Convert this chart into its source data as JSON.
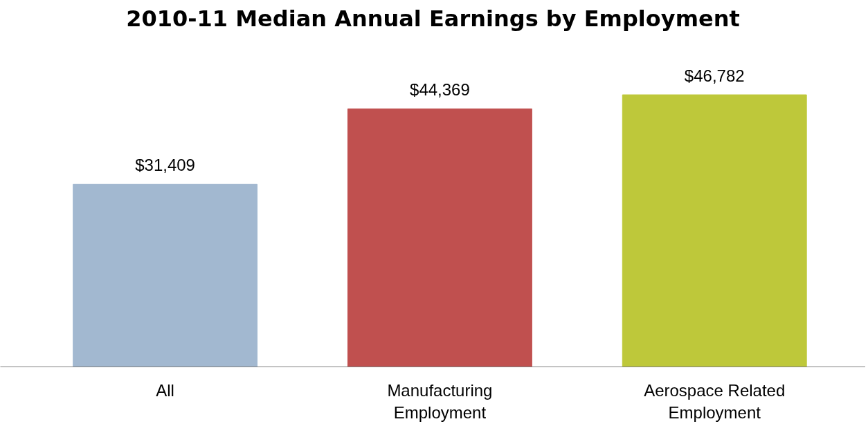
{
  "chart_data": {
    "type": "bar",
    "title": "2010-11 Median Annual Earnings by Employment",
    "categories": [
      "All",
      "Manufacturing\nEmployment",
      "Aerospace Related\nEmployment"
    ],
    "values": [
      31409,
      44369,
      46782
    ],
    "colors": [
      "#a2b8d0",
      "#c0504f",
      "#bec83a"
    ],
    "value_labels": [
      "$31,409",
      "$44,369",
      "$46,782"
    ]
  }
}
